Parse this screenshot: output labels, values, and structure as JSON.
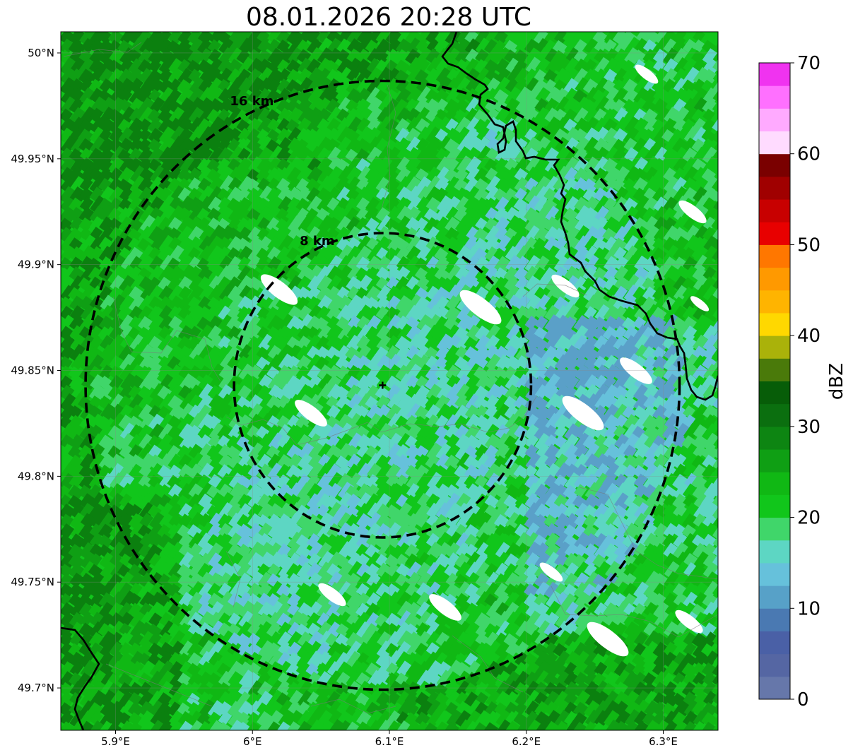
{
  "title": "08.01.2026 20:28 UTC",
  "map": {
    "lon_range": [
      5.86,
      6.34
    ],
    "lat_range": [
      49.68,
      50.01
    ],
    "x_ticks": [
      {
        "value": 5.9,
        "label": "5.9°E"
      },
      {
        "value": 6.0,
        "label": "6°E"
      },
      {
        "value": 6.1,
        "label": "6.1°E"
      },
      {
        "value": 6.2,
        "label": "6.2°E"
      },
      {
        "value": 6.3,
        "label": "6.3°E"
      }
    ],
    "y_ticks": [
      {
        "value": 50.0,
        "label": "50°N"
      },
      {
        "value": 49.95,
        "label": "49.95°N"
      },
      {
        "value": 49.9,
        "label": "49.9°N"
      },
      {
        "value": 49.85,
        "label": "49.85°N"
      },
      {
        "value": 49.8,
        "label": "49.8°N"
      },
      {
        "value": 49.75,
        "label": "49.75°N"
      },
      {
        "value": 49.7,
        "label": "49.7°N"
      }
    ],
    "radar_site": {
      "lon": 6.095,
      "lat": 49.843
    },
    "range_rings": [
      {
        "km": 8,
        "label": "8 km"
      },
      {
        "km": 16,
        "label": "16 km"
      }
    ],
    "border_color": "#000000",
    "ring_color": "#000000"
  },
  "colorbar": {
    "label": "dBZ",
    "min": 0,
    "max": 70,
    "step": 2.5,
    "tick_values": [
      0,
      10,
      20,
      30,
      40,
      50,
      60,
      70
    ],
    "tick_labels": [
      "0",
      "10",
      "20",
      "30",
      "40",
      "50",
      "60",
      "70"
    ],
    "colors": [
      "#6677aa",
      "#5566a3",
      "#4a60a6",
      "#4a79b2",
      "#57a1c8",
      "#66c1db",
      "#5dd6c3",
      "#40d66a",
      "#11c61b",
      "#10b814",
      "#0f9f14",
      "#0d8512",
      "#0b6f0f",
      "#075d08",
      "#4a7a0a",
      "#aab20a",
      "#ffd800",
      "#ffb400",
      "#ff9900",
      "#ff7700",
      "#e80000",
      "#c80000",
      "#a00000",
      "#7a0000",
      "#ffdbff",
      "#ffaaff",
      "#ff70ff",
      "#f033f0"
    ]
  }
}
